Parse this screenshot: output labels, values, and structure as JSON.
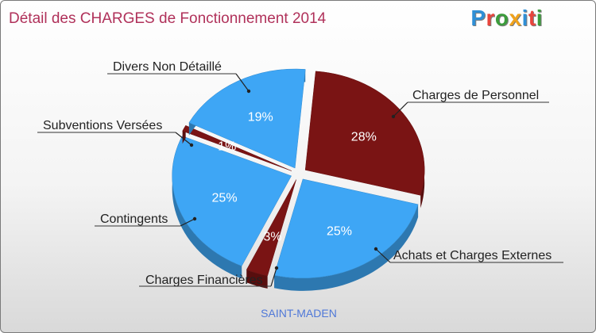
{
  "title": "Détail des CHARGES de Fonctionnement 2014",
  "logo": {
    "text": "Proxiti",
    "letter_colors": [
      "#2f8fd6",
      "#e8453c",
      "#3c9c3c",
      "#f0a21b",
      "#2f8fd6",
      "#e8453c",
      "#3c9c3c"
    ]
  },
  "city": "SAINT-MADEN",
  "chart_data": {
    "type": "pie",
    "title": "Détail des CHARGES de Fonctionnement 2014",
    "subtitle": "SAINT-MADEN",
    "slices": [
      {
        "label": "Charges de Personnel",
        "value": 28,
        "pct_label": "28%",
        "color": "#7a1414"
      },
      {
        "label": "Achats et Charges Externes",
        "value": 25,
        "pct_label": "25%",
        "color": "#3ea6f5"
      },
      {
        "label": "Charges Financières",
        "value": 3,
        "pct_label": "3%",
        "color": "#7a1414"
      },
      {
        "label": "Contingents",
        "value": 25,
        "pct_label": "25%",
        "color": "#3ea6f5"
      },
      {
        "label": "Subventions Versées",
        "value": 1,
        "pct_label": "1%",
        "color": "#7a1414"
      },
      {
        "label": "Divers Non Détaillé",
        "value": 19,
        "pct_label": "19%",
        "color": "#3ea6f5"
      }
    ]
  }
}
